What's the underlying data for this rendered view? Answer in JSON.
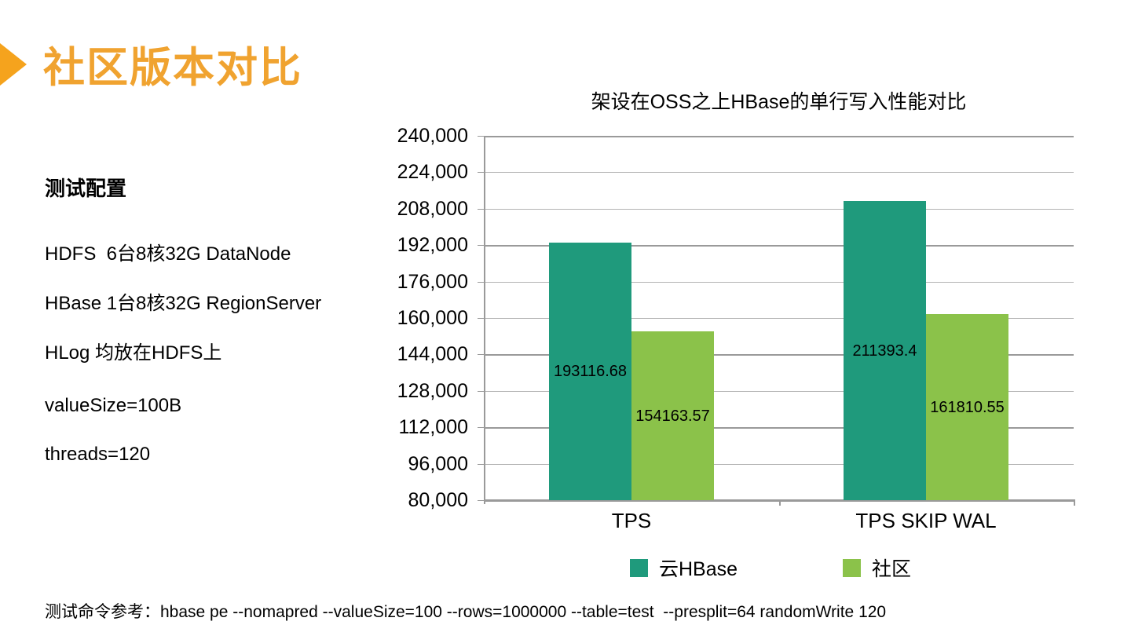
{
  "slide": {
    "title": "社区版本对比",
    "footer": "测试命令参考：hbase pe --nomapred --valueSize=100 --rows=1000000 --table=test  --presplit=64 randomWrite 120"
  },
  "config_panel": {
    "heading": "测试配置",
    "lines": [
      "HDFS  6台8核32G DataNode",
      "HBase 1台8核32G RegionServer",
      "HLog 均放在HDFS上",
      "valueSize=100B",
      "threads=120"
    ]
  },
  "colors": {
    "accent_orange": "#F0A330",
    "triangle_orange": "#F5A31D",
    "cloud_teal": "#1F9A7C",
    "community_green": "#8BC24A",
    "grid_minor": "#B3B3B3",
    "grid_major": "#9A9A9A"
  },
  "chart_data": {
    "type": "bar",
    "title": "架设在OSS之上HBase的单行写入性能对比",
    "categories": [
      "TPS",
      "TPS SKIP WAL"
    ],
    "series": [
      {
        "name": "云HBase",
        "color": "#1F9A7C",
        "values": [
          193116.68,
          211393.4
        ],
        "labels": [
          "193116.68",
          "211393.4"
        ]
      },
      {
        "name": "社区",
        "color": "#8BC24A",
        "values": [
          154163.57,
          161810.55
        ],
        "labels": [
          "154163.57",
          "161810.55"
        ]
      }
    ],
    "ylim": [
      80000,
      240000
    ],
    "ytick_step": 16000,
    "ytick_labels": [
      "80,000",
      "96,000",
      "112,000",
      "128,000",
      "144,000",
      "160,000",
      "176,000",
      "192,000",
      "208,000",
      "224,000",
      "240,000"
    ],
    "grid": true,
    "legend_position": "bottom"
  }
}
